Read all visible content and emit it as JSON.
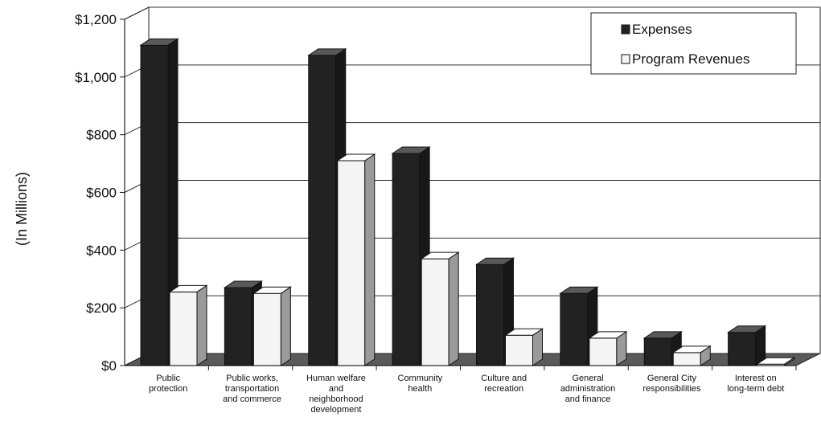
{
  "chart_data": {
    "type": "bar",
    "title": "",
    "xlabel": "",
    "ylabel": "(In Millions)",
    "ylim": [
      0,
      1200
    ],
    "y_ticks": [
      "$0",
      "$200",
      "$400",
      "$600",
      "$800",
      "$1,000",
      "$1,200"
    ],
    "y_tick_values": [
      0,
      200,
      400,
      600,
      800,
      1000,
      1200
    ],
    "grid": true,
    "style": "3d",
    "legend_position": "top-right",
    "categories": [
      [
        "Public",
        "protection"
      ],
      [
        "Public works,",
        "transportation",
        "and commerce"
      ],
      [
        "Human welfare",
        "and",
        "neighborhood",
        "development"
      ],
      [
        "Community",
        "health"
      ],
      [
        "Culture and",
        "recreation"
      ],
      [
        "General",
        "administration",
        "and finance"
      ],
      [
        "General City",
        "responsibilities"
      ],
      [
        "Interest on",
        "long-term debt"
      ]
    ],
    "series": [
      {
        "name": "Expenses",
        "color": "#222222",
        "values": [
          1110,
          270,
          1075,
          735,
          350,
          250,
          95,
          115
        ]
      },
      {
        "name": "Program Revenues",
        "color": "#f4f4f4",
        "values": [
          255,
          250,
          710,
          370,
          105,
          95,
          45,
          5
        ]
      }
    ]
  }
}
